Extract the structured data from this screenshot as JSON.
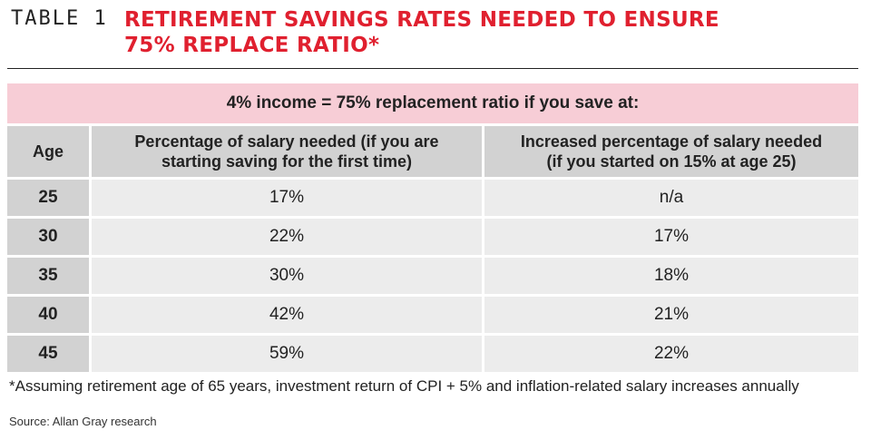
{
  "header": {
    "table_label": "TABLE 1",
    "title_line1": "RETIREMENT SAVINGS RATES NEEDED TO ENSURE",
    "title_line2": "75% REPLACE RATIO*"
  },
  "table": {
    "banner": "4% income = 75% replacement ratio if you save at:",
    "columns": {
      "age": "Age",
      "first_time_line1": "Percentage of salary needed (if you are",
      "first_time_line2": "starting saving for the first time)",
      "increased_line1": "Increased percentage of salary needed",
      "increased_line2": "(if you started on 15% at age 25)"
    },
    "rows": [
      {
        "age": "25",
        "first_time": "17%",
        "increased": "n/a"
      },
      {
        "age": "30",
        "first_time": "22%",
        "increased": "17%"
      },
      {
        "age": "35",
        "first_time": "30%",
        "increased": "18%"
      },
      {
        "age": "40",
        "first_time": "42%",
        "increased": "21%"
      },
      {
        "age": "45",
        "first_time": "59%",
        "increased": "22%"
      }
    ]
  },
  "footnote": "*Assuming retirement age of 65 years, investment return of CPI + 5% and inflation-related salary increases annually",
  "source": "Source: Allan Gray research",
  "colors": {
    "title": "#e0202f",
    "banner": "#f7cdd6",
    "header_cells": "#d2d2d2",
    "body_cells": "#ececec"
  }
}
